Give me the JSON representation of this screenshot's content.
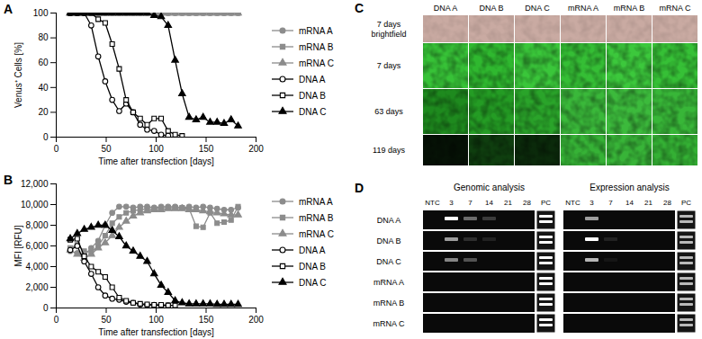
{
  "chart_data": [
    {
      "panel": "A",
      "type": "line",
      "xlabel": "Time after transfection [days]",
      "ylabel": "Venus⁺ Cells [%]",
      "x": [
        14,
        21,
        28,
        35,
        42,
        49,
        56,
        63,
        70,
        77,
        84,
        91,
        98,
        105,
        112,
        119,
        126,
        133,
        140,
        147,
        154,
        161,
        168,
        175,
        182
      ],
      "xlim": [
        0,
        200
      ],
      "xticks": [
        0,
        50,
        100,
        150,
        200
      ],
      "ylim": [
        0,
        100
      ],
      "yticks": [
        0,
        20,
        40,
        60,
        80,
        100
      ],
      "legend": "right",
      "series": [
        {
          "name": "mRNA A",
          "color": "#8c8c8c",
          "marker": "circle",
          "values": [
            100,
            100,
            100,
            100,
            100,
            100,
            100,
            100,
            100,
            100,
            100,
            100,
            100,
            100,
            100,
            100,
            100,
            100,
            100,
            100,
            100,
            100,
            100,
            100,
            100
          ]
        },
        {
          "name": "mRNA B",
          "color": "#8c8c8c",
          "marker": "square",
          "values": [
            100,
            100,
            100,
            100,
            100,
            100,
            100,
            100,
            100,
            100,
            100,
            100,
            100,
            100,
            100,
            100,
            100,
            100,
            100,
            100,
            100,
            100,
            100,
            100,
            100
          ]
        },
        {
          "name": "mRNA C",
          "color": "#8c8c8c",
          "marker": "triangle",
          "values": [
            100,
            100,
            100,
            100,
            100,
            100,
            100,
            100,
            100,
            100,
            100,
            100,
            100,
            100,
            100,
            100,
            100,
            100,
            100,
            100,
            100,
            100,
            100,
            100,
            100
          ]
        },
        {
          "name": "DNA A",
          "color": "#000000",
          "marker": "circle-open",
          "values": [
            100,
            100,
            100,
            90,
            65,
            45,
            30,
            21,
            27,
            20,
            10,
            6,
            5,
            2,
            1,
            null,
            null,
            null,
            null,
            null,
            null,
            null,
            null,
            null,
            null
          ]
        },
        {
          "name": "DNA B",
          "color": "#000000",
          "marker": "square-open",
          "values": [
            100,
            100,
            100,
            100,
            95,
            92,
            75,
            55,
            30,
            20,
            15,
            10,
            15,
            15,
            5,
            2,
            1,
            null,
            null,
            null,
            null,
            null,
            null,
            null,
            null
          ]
        },
        {
          "name": "DNA C",
          "color": "#000000",
          "marker": "triangle",
          "values": [
            100,
            100,
            100,
            100,
            100,
            100,
            100,
            100,
            100,
            100,
            100,
            100,
            98,
            97,
            90,
            62,
            35,
            16,
            14,
            16,
            12,
            12,
            11,
            14,
            9
          ]
        }
      ]
    },
    {
      "panel": "B",
      "type": "line",
      "xlabel": "Time after transfection [days]",
      "ylabel": "MFI [RFU]",
      "x": [
        14,
        21,
        28,
        35,
        42,
        49,
        56,
        63,
        70,
        77,
        84,
        91,
        98,
        105,
        112,
        119,
        126,
        133,
        140,
        147,
        154,
        161,
        168,
        175,
        182
      ],
      "xlim": [
        0,
        200
      ],
      "xticks": [
        0,
        50,
        100,
        150,
        200
      ],
      "ylim": [
        0,
        12000
      ],
      "yticks": [
        0,
        {
          "value": 2000,
          "label": "2,000"
        },
        {
          "value": 4000,
          "label": "4,000"
        },
        {
          "value": 6000,
          "label": "6,000"
        },
        {
          "value": 8000,
          "label": "8,000"
        },
        {
          "value": 10000,
          "label": "10,000"
        },
        {
          "value": 12000,
          "label": "12,000"
        }
      ],
      "legend": "right",
      "series": [
        {
          "name": "mRNA A",
          "color": "#8c8c8c",
          "marker": "circle",
          "values": [
            5500,
            5300,
            5100,
            5800,
            6500,
            8000,
            9200,
            9800,
            9800,
            9700,
            9800,
            9800,
            9700,
            9800,
            9800,
            9800,
            9700,
            9800,
            9700,
            9800,
            9700,
            9600,
            9500,
            9500,
            9700
          ]
        },
        {
          "name": "mRNA B",
          "color": "#8c8c8c",
          "marker": "square",
          "values": [
            5800,
            6100,
            5500,
            5400,
            6000,
            7000,
            8200,
            8800,
            9200,
            9400,
            9500,
            9600,
            9600,
            9700,
            9700,
            9700,
            9700,
            9600,
            7900,
            7800,
            9200,
            8200,
            8300,
            8500,
            9800
          ]
        },
        {
          "name": "mRNA C",
          "color": "#8c8c8c",
          "marker": "triangle",
          "values": [
            5600,
            5200,
            4800,
            5200,
            5800,
            6300,
            7000,
            7800,
            8400,
            8900,
            9200,
            9400,
            9500,
            9500,
            9600,
            9600,
            9600,
            9500,
            9500,
            9400,
            9300,
            9200,
            9100,
            9000,
            9000
          ]
        },
        {
          "name": "DNA A",
          "color": "#000000",
          "marker": "circle-open",
          "values": [
            5600,
            6000,
            4500,
            3300,
            2000,
            1200,
            900,
            800,
            600,
            500,
            350,
            300,
            300,
            250,
            250,
            null,
            null,
            null,
            null,
            null,
            null,
            null,
            null,
            null,
            null
          ]
        },
        {
          "name": "DNA B",
          "color": "#000000",
          "marker": "square-open",
          "values": [
            6600,
            6700,
            5000,
            4000,
            3500,
            3000,
            2000,
            1000,
            700,
            500,
            400,
            350,
            300,
            300,
            250,
            250,
            null,
            null,
            null,
            null,
            null,
            null,
            null,
            null,
            null
          ]
        },
        {
          "name": "DNA C",
          "color": "#000000",
          "marker": "triangle",
          "values": [
            6700,
            7200,
            7600,
            7800,
            8000,
            8000,
            7500,
            6900,
            6000,
            5500,
            5000,
            4500,
            3300,
            2200,
            1500,
            700,
            500,
            400,
            400,
            400,
            400,
            350,
            350,
            350,
            350
          ]
        }
      ]
    }
  ],
  "image_panel": {
    "panel": "C",
    "columns": [
      "DNA A",
      "DNA B",
      "DNA C",
      "mRNA A",
      "mRNA B",
      "mRNA C"
    ],
    "rows": [
      {
        "label": [
          "7 days",
          "brightfield"
        ],
        "colors": [
          "#c9aaa2",
          "#c9aaa2",
          "#c9aaa2",
          "#c9aaa2",
          "#c9aaa2",
          "#c9aaa2"
        ]
      },
      {
        "label": [
          "7 days"
        ],
        "colors": [
          "#37c237",
          "#2fb82f",
          "#3ac63a",
          "#35be35",
          "#3cc83c",
          "#36c036"
        ]
      },
      {
        "label": [
          "63 days"
        ],
        "colors": [
          "#1e8a1e",
          "#249c24",
          "#2aa42a",
          "#3ab83a",
          "#3cba3c",
          "#38b638"
        ]
      },
      {
        "label": [
          "119 days"
        ],
        "colors": [
          "#061206",
          "#0f3e0f",
          "#0b2a0b",
          "#36b236",
          "#38b438",
          "#34b034"
        ]
      }
    ]
  },
  "gel_panel": {
    "panel": "D",
    "lanes": [
      "NTC",
      "3",
      "7",
      "14",
      "21",
      "28",
      "PC"
    ],
    "gels": [
      {
        "title": "Genomic analysis",
        "rows": [
          {
            "label": "DNA A",
            "bands": [
              0,
              1,
              0.4,
              0.2,
              0,
              0,
              1
            ]
          },
          {
            "label": "DNA B",
            "bands": [
              0,
              0.6,
              0.15,
              0.1,
              0,
              0,
              1
            ]
          },
          {
            "label": "DNA C",
            "bands": [
              0,
              0.5,
              0.3,
              0,
              0,
              0,
              1
            ]
          },
          {
            "label": "mRNA A",
            "bands": [
              0,
              0,
              0,
              0,
              0,
              0,
              1
            ]
          },
          {
            "label": "mRNA B",
            "bands": [
              0,
              0,
              0,
              0,
              0,
              0,
              1
            ]
          },
          {
            "label": "mRNA C",
            "bands": [
              0,
              0,
              0,
              0,
              0,
              0,
              1
            ]
          }
        ]
      },
      {
        "title": "Expression analysis",
        "rows": [
          {
            "label": "DNA A",
            "bands": [
              0,
              0.6,
              0,
              0,
              0,
              0,
              0.7
            ]
          },
          {
            "label": "DNA B",
            "bands": [
              0,
              1,
              0.1,
              0,
              0,
              0,
              0.7
            ]
          },
          {
            "label": "DNA C",
            "bands": [
              0,
              0.7,
              0.05,
              0,
              0,
              0,
              0.7
            ]
          },
          {
            "label": "mRNA A",
            "bands": [
              0,
              0,
              0,
              0,
              0,
              0,
              0.7
            ]
          },
          {
            "label": "mRNA B",
            "bands": [
              0,
              0,
              0,
              0,
              0,
              0,
              0.7
            ]
          },
          {
            "label": "mRNA C",
            "bands": [
              0,
              0,
              0,
              0,
              0,
              0,
              0.7
            ]
          }
        ]
      }
    ]
  }
}
